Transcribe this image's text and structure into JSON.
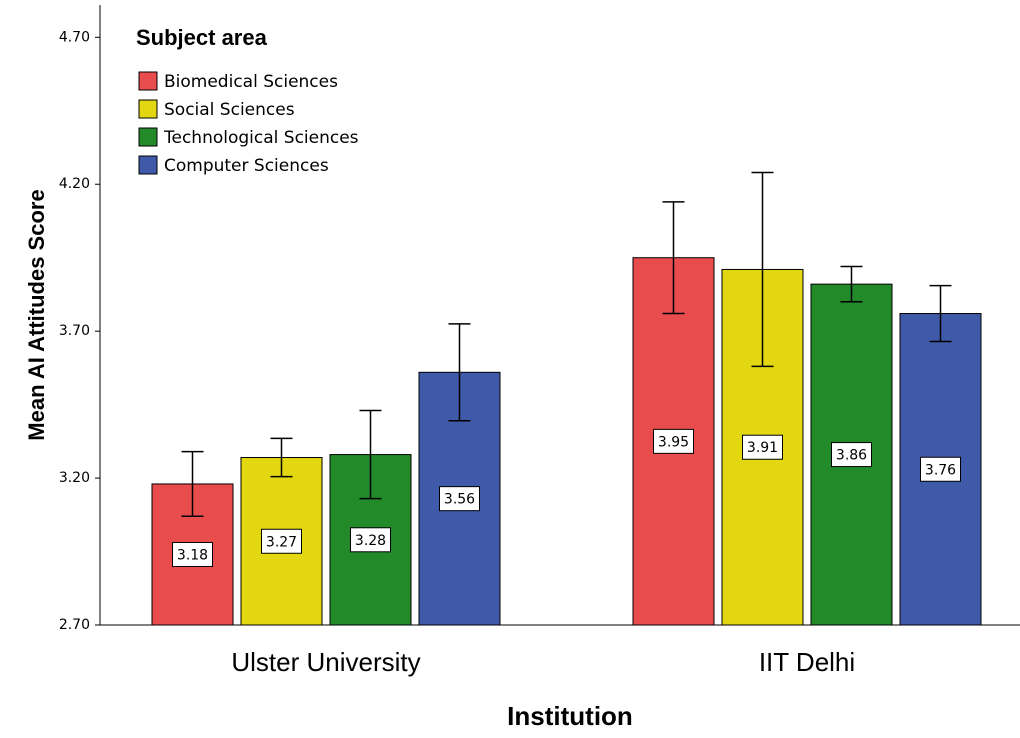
{
  "chart_data": {
    "type": "bar",
    "x_label": "Institution",
    "y_label": "Mean AI Attitudes Score",
    "legend_title": "Subject area",
    "legend_position": "upper left",
    "categories": [
      "Ulster University",
      "IIT Delhi"
    ],
    "series": [
      {
        "name": "Biomedical Sciences",
        "color": "#e84c4c",
        "values": [
          3.18,
          3.95
        ],
        "errors": [
          0.11,
          0.19
        ]
      },
      {
        "name": "Social Sciences",
        "color": "#e3d712",
        "values": [
          3.27,
          3.91
        ],
        "errors": [
          0.065,
          0.33
        ]
      },
      {
        "name": "Technological Sciences",
        "color": "#238a2a",
        "values": [
          3.28,
          3.86
        ],
        "errors": [
          0.15,
          0.06
        ]
      },
      {
        "name": "Computer Sciences",
        "color": "#3f5aa8",
        "values": [
          3.56,
          3.76
        ],
        "errors": [
          0.165,
          0.095
        ]
      }
    ],
    "ylim": [
      2.7,
      4.81
    ],
    "yticks": [
      {
        "value": 2.7,
        "label": "2.70"
      },
      {
        "value": 3.2,
        "label": "3.20"
      },
      {
        "value": 3.7,
        "label": "3.70"
      },
      {
        "value": 4.2,
        "label": "4.20"
      },
      {
        "value": 4.7,
        "label": "4.70"
      }
    ]
  }
}
